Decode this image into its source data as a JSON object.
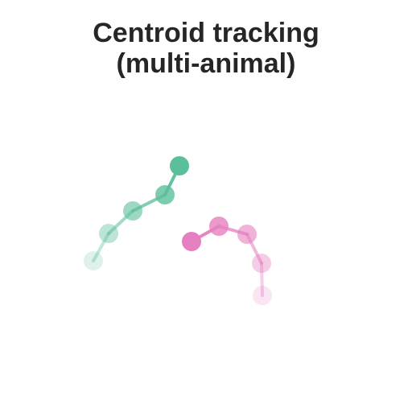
{
  "title": {
    "line1": "Centroid tracking",
    "line2": "(multi-animal)"
  },
  "colors": {
    "track_a": "#5bbf9a",
    "track_b": "#e67fbf",
    "title": "#262626",
    "background": "#ffffff"
  },
  "tracks": [
    {
      "color_key": "track_a",
      "history_length": 5
    },
    {
      "color_key": "track_b",
      "history_length": 5
    }
  ]
}
